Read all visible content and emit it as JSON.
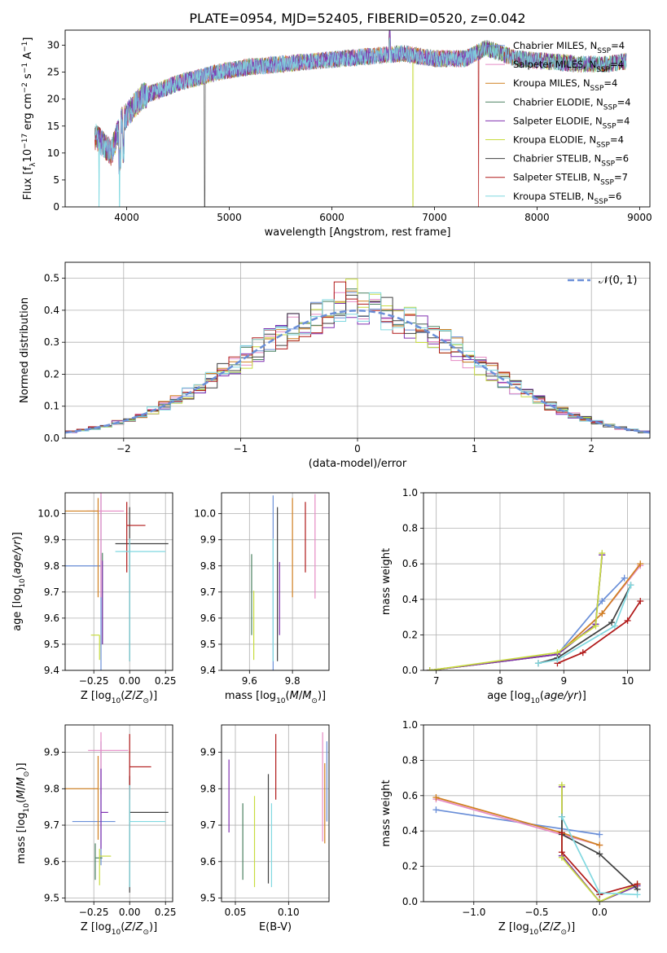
{
  "title": "PLATE=0954, MJD=52405, FIBERID=0520, z=0.042",
  "colors": {
    "Chabrier MILES": "#6a8fd8",
    "Salpeter MILES": "#e58ac4",
    "Kroupa MILES": "#d08020",
    "Chabrier ELODIE": "#4a8060",
    "Salpeter ELODIE": "#8030b0",
    "Kroupa ELODIE": "#c8dc40",
    "Chabrier STELIB": "#404040",
    "Salpeter STELIB": "#b01818",
    "Kroupa STELIB": "#80d8e0"
  },
  "chart_data": [
    {
      "type": "line",
      "title": "PLATE=0954, MJD=52405, FIBERID=0520, z=0.042",
      "xlabel": "wavelength [Angstrom, rest frame]",
      "ylabel": "Flux [f_λ 10^-17 erg cm^-2 s^-1 A^-1]",
      "xlim": [
        3400,
        9100
      ],
      "ylim": [
        0,
        32.8
      ],
      "xticks": [
        4000,
        5000,
        6000,
        7000,
        8000,
        9000
      ],
      "yticks": [
        0,
        5,
        10,
        15,
        20,
        25,
        30
      ],
      "legend_position": "top-right",
      "legend": [
        "Chabrier MILES, N_SSP=4",
        "Salpeter MILES, N_SSP=4",
        "Kroupa MILES, N_SSP=4",
        "Chabrier ELODIE, N_SSP=4",
        "Salpeter ELODIE, N_SSP=4",
        "Kroupa ELODIE, N_SSP=4",
        "Chabrier STELIB, N_SSP=6",
        "Salpeter STELIB, N_SSP=7",
        "Kroupa STELIB, N_SSP=6"
      ],
      "approx_continuum": {
        "x": [
          3700,
          3850,
          3950,
          4000,
          4150,
          4300,
          4500,
          4700,
          4900,
          5200,
          5500,
          5800,
          6100,
          6400,
          6700,
          7000,
          7300,
          7500,
          7800,
          8100,
          8400,
          8700,
          8850
        ],
        "y": [
          13,
          10,
          16,
          17,
          20.5,
          21.5,
          23,
          24,
          25,
          26,
          26.5,
          27,
          27.5,
          28,
          28.5,
          27.5,
          27.5,
          29.5,
          27.5,
          27,
          26.5,
          26.5,
          27
        ]
      },
      "grid": false
    },
    {
      "type": "line",
      "xlabel": "(data-model)/error",
      "ylabel": "Normed distribution",
      "xlim": [
        -2.5,
        2.5
      ],
      "ylim": [
        0,
        0.55
      ],
      "xticks": [
        -2,
        -1,
        0,
        1,
        2
      ],
      "xtick_labels": [
        "−2",
        "−1",
        "0",
        "1",
        "2"
      ],
      "yticks": [
        0.0,
        0.1,
        0.2,
        0.3,
        0.4,
        0.5
      ],
      "ytick_labels": [
        "0.0",
        "0.1",
        "0.2",
        "0.3",
        "0.4",
        "0.5"
      ],
      "legend_position": "top-right",
      "legend": [
        "𝒩(0, 1)"
      ],
      "grid": true,
      "histogram_bin_width": 0.1,
      "histogram_bins_from": -2.5
    },
    {
      "type": "scatter",
      "xlabel": "Z [log10(Z/Z⊙)]",
      "ylabel": "age [log10(age/yr)]",
      "xlim": [
        -0.45,
        0.3
      ],
      "ylim": [
        9.4,
        10.08
      ],
      "xticks": [
        -0.25,
        0.0,
        0.25
      ],
      "xtick_labels": [
        "−0.25",
        "0.00",
        "0.25"
      ],
      "yticks": [
        9.4,
        9.5,
        9.6,
        9.7,
        9.8,
        9.9,
        10.0
      ],
      "ytick_labels": [
        "9.4",
        "9.5",
        "9.6",
        "9.7",
        "9.8",
        "9.9",
        "10.0"
      ],
      "grid": true,
      "errorbars": [
        {
          "model": "Chabrier MILES",
          "x": -0.2,
          "y": 9.8,
          "xerr": [
            0.26,
            0.0
          ],
          "yerr": [
            0.4,
            0.27
          ]
        },
        {
          "model": "Salpeter MILES",
          "x": -0.2,
          "y": 10.01,
          "xerr": [
            0.1,
            0.16
          ],
          "yerr": [
            0.33,
            0.07
          ]
        },
        {
          "model": "Kroupa MILES",
          "x": -0.22,
          "y": 10.01,
          "xerr": [
            0.24,
            0.0
          ],
          "yerr": [
            0.33,
            0.05
          ]
        },
        {
          "model": "Chabrier ELODIE",
          "x": -0.19,
          "y": 9.8,
          "xerr": [
            0.0,
            0.0
          ],
          "yerr": [
            0.3,
            0.05
          ]
        },
        {
          "model": "Salpeter ELODIE",
          "x": -0.19,
          "y": 9.8,
          "xerr": [
            0.0,
            0.0
          ],
          "yerr": [
            0.3,
            0.02
          ]
        },
        {
          "model": "Kroupa ELODIE",
          "x": -0.21,
          "y": 9.535,
          "xerr": [
            0.06,
            0.0
          ],
          "yerr": [
            0.095,
            0.0
          ]
        },
        {
          "model": "Chabrier STELIB",
          "x": 0.0,
          "y": 9.885,
          "xerr": [
            0.1,
            0.27
          ],
          "yerr": [
            0.45,
            0.14
          ]
        },
        {
          "model": "Salpeter STELIB",
          "x": -0.02,
          "y": 9.955,
          "xerr": [
            0.0,
            0.13
          ],
          "yerr": [
            0.18,
            0.09
          ]
        },
        {
          "model": "Kroupa STELIB",
          "x": 0.0,
          "y": 9.855,
          "xerr": [
            0.1,
            0.25
          ],
          "yerr": [
            0.42,
            0.05
          ]
        }
      ]
    },
    {
      "type": "scatter",
      "xlabel": "mass [log10(M/M⊙)]",
      "ylabel": "",
      "xlim": [
        9.47,
        9.97
      ],
      "ylim": [
        9.4,
        10.08
      ],
      "xticks": [
        9.6,
        9.8
      ],
      "yticks": [
        9.4,
        9.5,
        9.6,
        9.7,
        9.8,
        9.9,
        10.0
      ],
      "ytick_labels": [
        "9.4",
        "9.5",
        "9.6",
        "9.7",
        "9.8",
        "9.9",
        "10.0"
      ],
      "grid": true,
      "errorbars": [
        {
          "model": "Chabrier MILES",
          "x": 9.71,
          "y": 9.8,
          "xerr": [
            0.0,
            0.0
          ],
          "yerr": [
            0.4,
            0.27
          ]
        },
        {
          "model": "Salpeter MILES",
          "x": 9.905,
          "y": 10.005,
          "xerr": [
            0.0,
            0.0
          ],
          "yerr": [
            0.33,
            0.07
          ]
        },
        {
          "model": "Kroupa MILES",
          "x": 9.8,
          "y": 10.01,
          "xerr": [
            0.0,
            0.0
          ],
          "yerr": [
            0.33,
            0.05
          ]
        },
        {
          "model": "Chabrier ELODIE",
          "x": 9.61,
          "y": 9.535,
          "xerr": [
            0.0,
            0.0
          ],
          "yerr": [
            0.0,
            0.31
          ]
        },
        {
          "model": "Salpeter ELODIE",
          "x": 9.74,
          "y": 9.535,
          "xerr": [
            0.0,
            0.0
          ],
          "yerr": [
            0.0,
            0.28
          ]
        },
        {
          "model": "Kroupa ELODIE",
          "x": 9.62,
          "y": 9.535,
          "xerr": [
            0.0,
            0.0
          ],
          "yerr": [
            0.095,
            0.17
          ]
        },
        {
          "model": "Chabrier STELIB",
          "x": 9.73,
          "y": 9.885,
          "xerr": [
            0.0,
            0.0
          ],
          "yerr": [
            0.45,
            0.14
          ]
        },
        {
          "model": "Salpeter STELIB",
          "x": 9.86,
          "y": 9.955,
          "xerr": [
            0.0,
            0.0
          ],
          "yerr": [
            0.18,
            0.09
          ]
        },
        {
          "model": "Kroupa STELIB",
          "x": 9.71,
          "y": 9.855,
          "xerr": [
            0.0,
            0.0
          ],
          "yerr": [
            0.42,
            0.05
          ]
        }
      ]
    },
    {
      "type": "line",
      "xlabel": "age [log10(age/yr)]",
      "ylabel": "mass weight",
      "xlim": [
        6.8,
        10.35
      ],
      "ylim": [
        0,
        1.0
      ],
      "xticks": [
        7,
        8,
        9,
        10
      ],
      "yticks": [
        0.0,
        0.2,
        0.4,
        0.6,
        0.8,
        1.0
      ],
      "ytick_labels": [
        "0.0",
        "0.2",
        "0.4",
        "0.6",
        "0.8",
        "1.0"
      ],
      "grid": true,
      "series": [
        {
          "model": "Chabrier MILES",
          "x": [
            6.9,
            8.9,
            9.6,
            9.95
          ],
          "y": [
            0.0,
            0.09,
            0.39,
            0.52
          ]
        },
        {
          "model": "Salpeter MILES",
          "x": [
            6.9,
            8.9,
            9.6,
            10.2
          ],
          "y": [
            0.0,
            0.09,
            0.32,
            0.59
          ]
        },
        {
          "model": "Kroupa MILES",
          "x": [
            6.9,
            8.9,
            9.6,
            10.2
          ],
          "y": [
            0.0,
            0.09,
            0.32,
            0.6
          ]
        },
        {
          "model": "Chabrier ELODIE",
          "x": [
            6.9,
            8.9,
            9.5,
            9.6
          ],
          "y": [
            0.0,
            0.09,
            0.26,
            0.65
          ]
        },
        {
          "model": "Salpeter ELODIE",
          "x": [
            6.9,
            8.9,
            9.5,
            9.6
          ],
          "y": [
            0.0,
            0.09,
            0.26,
            0.65
          ]
        },
        {
          "model": "Kroupa ELODIE",
          "x": [
            6.9,
            8.9,
            9.5,
            9.6
          ],
          "y": [
            0.0,
            0.1,
            0.25,
            0.66
          ]
        },
        {
          "model": "Chabrier STELIB",
          "x": [
            8.6,
            8.9,
            9.75,
            10.05
          ],
          "y": [
            0.04,
            0.07,
            0.27,
            0.48
          ]
        },
        {
          "model": "Salpeter STELIB",
          "x": [
            8.9,
            9.3,
            10.0,
            10.2
          ],
          "y": [
            0.04,
            0.1,
            0.28,
            0.39
          ]
        },
        {
          "model": "Kroupa STELIB",
          "x": [
            8.6,
            8.9,
            9.8,
            10.05
          ],
          "y": [
            0.04,
            0.06,
            0.25,
            0.48
          ]
        }
      ]
    },
    {
      "type": "scatter",
      "xlabel": "Z [log10(Z/Z⊙)]",
      "ylabel": "mass [log10(M/M⊙)]",
      "xlim": [
        -0.45,
        0.3
      ],
      "ylim": [
        9.49,
        9.975
      ],
      "xticks": [
        -0.25,
        0.0,
        0.25
      ],
      "xtick_labels": [
        "−0.25",
        "0.00",
        "0.25"
      ],
      "yticks": [
        9.5,
        9.6,
        9.7,
        9.8,
        9.9
      ],
      "ytick_labels": [
        "9.5",
        "9.6",
        "9.7",
        "9.8",
        "9.9"
      ],
      "grid": true,
      "errorbars": [
        {
          "model": "Chabrier MILES",
          "x": -0.2,
          "y": 9.71,
          "xerr": [
            0.2,
            0.1
          ],
          "yerr": [
            0.12,
            0.22
          ]
        },
        {
          "model": "Salpeter MILES",
          "x": -0.2,
          "y": 9.905,
          "xerr": [
            0.09,
            0.19
          ],
          "yerr": [
            0.12,
            0.05
          ]
        },
        {
          "model": "Kroupa MILES",
          "x": -0.22,
          "y": 9.8,
          "xerr": [
            0.24,
            0.0
          ],
          "yerr": [
            0.14,
            0.09
          ]
        },
        {
          "model": "Chabrier ELODIE",
          "x": -0.24,
          "y": 9.61,
          "xerr": [
            0.0,
            0.05
          ],
          "yerr": [
            0.06,
            0.04
          ]
        },
        {
          "model": "Salpeter ELODIE",
          "x": -0.2,
          "y": 9.735,
          "xerr": [
            0.0,
            0.05
          ],
          "yerr": [
            0.1,
            0.12
          ]
        },
        {
          "model": "Kroupa ELODIE",
          "x": -0.21,
          "y": 9.615,
          "xerr": [
            0.0,
            0.08
          ],
          "yerr": [
            0.08,
            0.02
          ]
        },
        {
          "model": "Chabrier STELIB",
          "x": 0.0,
          "y": 9.735,
          "xerr": [
            0.0,
            0.27
          ],
          "yerr": [
            0.22,
            0.1
          ]
        },
        {
          "model": "Salpeter STELIB",
          "x": 0.0,
          "y": 9.86,
          "xerr": [
            0.0,
            0.15
          ],
          "yerr": [
            0.09,
            0.09
          ]
        },
        {
          "model": "Kroupa STELIB",
          "x": 0.0,
          "y": 9.71,
          "xerr": [
            0.0,
            0.25
          ],
          "yerr": [
            0.18,
            0.1
          ]
        }
      ]
    },
    {
      "type": "scatter",
      "xlabel": "E(B-V)",
      "ylabel": "",
      "xlim": [
        0.037,
        0.138
      ],
      "ylim": [
        9.49,
        9.975
      ],
      "xticks": [
        0.05,
        0.1
      ],
      "xtick_labels": [
        "0.05",
        "0.10"
      ],
      "yticks": [
        9.5,
        9.6,
        9.7,
        9.8,
        9.9
      ],
      "ytick_labels": [
        "9.5",
        "9.6",
        "9.7",
        "9.8",
        "9.9"
      ],
      "grid": true,
      "errorbars": [
        {
          "model": "Salpeter ELODIE",
          "x": 0.044,
          "y": 9.78,
          "xerr": [
            0.0,
            0.0
          ],
          "yerr": [
            0.1,
            0.1
          ]
        },
        {
          "model": "Chabrier ELODIE",
          "x": 0.057,
          "y": 9.66,
          "xerr": [
            0.0,
            0.0
          ],
          "yerr": [
            0.11,
            0.1
          ]
        },
        {
          "model": "Kroupa ELODIE",
          "x": 0.068,
          "y": 9.655,
          "xerr": [
            0.0,
            0.0
          ],
          "yerr": [
            0.125,
            0.125
          ]
        },
        {
          "model": "Chabrier STELIB",
          "x": 0.081,
          "y": 9.7,
          "xerr": [
            0.0,
            0.0
          ],
          "yerr": [
            0.16,
            0.14
          ]
        },
        {
          "model": "Kroupa STELIB",
          "x": 0.084,
          "y": 9.65,
          "xerr": [
            0.0,
            0.0
          ],
          "yerr": [
            0.12,
            0.11
          ]
        },
        {
          "model": "Salpeter STELIB",
          "x": 0.088,
          "y": 9.86,
          "xerr": [
            0.0,
            0.0
          ],
          "yerr": [
            0.09,
            0.09
          ]
        },
        {
          "model": "Salpeter MILES",
          "x": 0.132,
          "y": 9.805,
          "xerr": [
            0.0,
            0.0
          ],
          "yerr": [
            0.15,
            0.15
          ]
        },
        {
          "model": "Kroupa MILES",
          "x": 0.134,
          "y": 9.76,
          "xerr": [
            0.0,
            0.0
          ],
          "yerr": [
            0.11,
            0.11
          ]
        },
        {
          "model": "Chabrier MILES",
          "x": 0.136,
          "y": 9.82,
          "xerr": [
            0.0,
            0.0
          ],
          "yerr": [
            0.11,
            0.11
          ]
        }
      ]
    },
    {
      "type": "line",
      "xlabel": "Z [log10(Z/Z⊙)]",
      "ylabel": "mass weight",
      "xlim": [
        -1.4,
        0.4
      ],
      "ylim": [
        0,
        1.0
      ],
      "xticks": [
        -1.0,
        -0.5,
        0.0
      ],
      "xtick_labels": [
        "−1.0",
        "−0.5",
        "0.0"
      ],
      "yticks": [
        0.0,
        0.2,
        0.4,
        0.6,
        0.8,
        1.0
      ],
      "ytick_labels": [
        "0.0",
        "0.2",
        "0.4",
        "0.6",
        "0.8",
        "1.0"
      ],
      "grid": true,
      "series": [
        {
          "model": "Chabrier MILES",
          "x": [
            -1.3,
            0.0
          ],
          "y": [
            0.52,
            0.38
          ]
        },
        {
          "model": "Salpeter MILES",
          "x": [
            -1.3,
            0.0
          ],
          "y": [
            0.58,
            0.32
          ]
        },
        {
          "model": "Kroupa MILES",
          "x": [
            -1.3,
            -0.3,
            0.0
          ],
          "y": [
            0.59,
            0.39,
            0.32
          ]
        },
        {
          "model": "Chabrier ELODIE",
          "x": [
            -0.3,
            -0.3,
            0.0,
            0.3
          ],
          "y": [
            0.65,
            0.26,
            0.0,
            0.09
          ]
        },
        {
          "model": "Salpeter ELODIE",
          "x": [
            -0.3,
            -0.3,
            0.0,
            0.3
          ],
          "y": [
            0.65,
            0.26,
            0.0,
            0.09
          ]
        },
        {
          "model": "Kroupa ELODIE",
          "x": [
            -0.3,
            -0.3,
            0.0,
            0.3
          ],
          "y": [
            0.66,
            0.25,
            0.0,
            0.1
          ]
        },
        {
          "model": "Chabrier STELIB",
          "x": [
            -0.3,
            -0.3,
            0.0,
            0.3
          ],
          "y": [
            0.48,
            0.38,
            0.27,
            0.07
          ]
        },
        {
          "model": "Salpeter STELIB",
          "x": [
            -0.3,
            -0.3,
            0.0,
            0.3
          ],
          "y": [
            0.39,
            0.28,
            0.04,
            0.1
          ]
        },
        {
          "model": "Kroupa STELIB",
          "x": [
            -0.3,
            0.0,
            0.3
          ],
          "y": [
            0.48,
            0.05,
            0.04
          ]
        }
      ]
    }
  ]
}
